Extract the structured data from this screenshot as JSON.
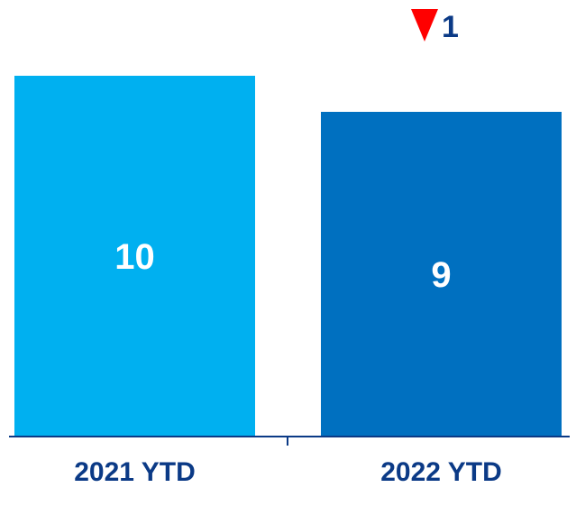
{
  "chart_data": {
    "type": "bar",
    "categories": [
      "2021 YTD",
      "2022 YTD"
    ],
    "values": [
      10,
      9
    ],
    "colors": [
      "#00b0f0",
      "#0070c0"
    ],
    "ylim": [
      0,
      10.9
    ],
    "title": "",
    "xlabel": "",
    "ylabel": "",
    "change_indicator": {
      "direction": "down",
      "value": "1",
      "arrow_color": "#ff0000",
      "text_color": "#0b3a86"
    },
    "axis_color": "#0b3a86",
    "grid": false
  }
}
